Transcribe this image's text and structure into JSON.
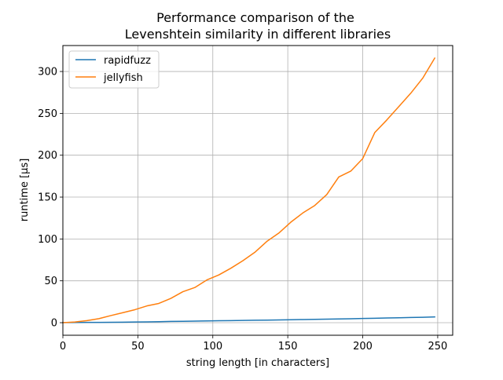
{
  "chart_data": {
    "type": "line",
    "title": [
      "Performance comparison of the",
      "Levenshtein similarity in different libraries"
    ],
    "xlabel": "string length [in characters]",
    "ylabel": "runtime [µs]",
    "xlim": [
      0,
      260
    ],
    "ylim": [
      -15,
      331
    ],
    "xticks": [
      0,
      50,
      100,
      150,
      200,
      250
    ],
    "yticks": [
      0,
      50,
      100,
      150,
      200,
      250,
      300
    ],
    "grid": true,
    "legend_position": "upper-left",
    "series": [
      {
        "name": "rapidfuzz",
        "color": "#1f77b4",
        "x": [
          0,
          8,
          16,
          24,
          32,
          40,
          48,
          56,
          64,
          72,
          80,
          88,
          96,
          104,
          112,
          120,
          128,
          136,
          144,
          152,
          160,
          168,
          176,
          184,
          192,
          200,
          208,
          216,
          224,
          232,
          240,
          248
        ],
        "y": [
          0.1,
          0.2,
          0.3,
          0.4,
          0.5,
          0.6,
          0.8,
          1.0,
          1.2,
          1.5,
          1.7,
          1.9,
          2.1,
          2.3,
          2.5,
          2.7,
          2.9,
          3.1,
          3.3,
          3.5,
          3.8,
          4.0,
          4.2,
          4.5,
          4.7,
          5.0,
          5.3,
          5.6,
          5.9,
          6.2,
          6.5,
          6.9
        ]
      },
      {
        "name": "jellyfish",
        "color": "#ff7f0e",
        "x": [
          0,
          8,
          16,
          24,
          32,
          40,
          48,
          56,
          64,
          72,
          80,
          88,
          96,
          104,
          112,
          120,
          128,
          136,
          144,
          152,
          160,
          168,
          176,
          184,
          192,
          200,
          208,
          216,
          224,
          232,
          240,
          248
        ],
        "y": [
          0,
          0.8,
          2.5,
          4.8,
          8.5,
          12,
          15.5,
          20,
          23,
          29,
          37,
          42,
          51,
          57,
          65,
          74,
          84,
          97,
          107,
          120,
          131,
          140,
          153,
          174,
          181,
          196,
          227,
          242,
          258,
          274,
          292,
          316
        ]
      }
    ]
  }
}
